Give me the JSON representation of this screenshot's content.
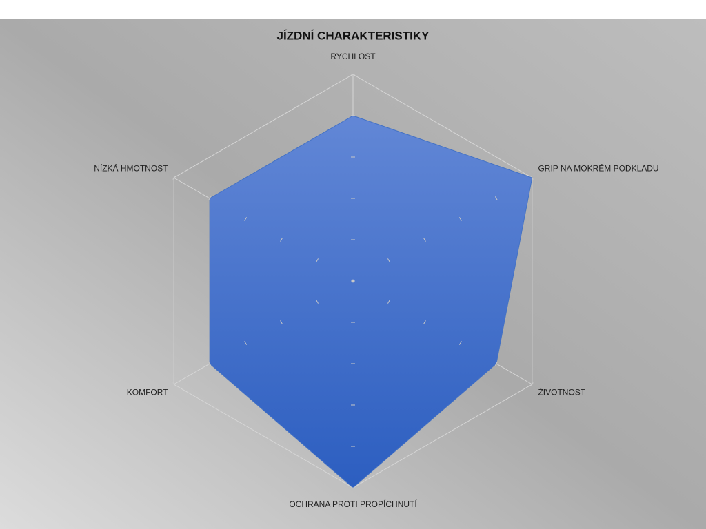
{
  "chart_data": {
    "type": "radar",
    "title": "JÍZDNÍ CHARAKTERISTIKY",
    "categories": [
      "RYCHLOST",
      "GRIP NA MOKRÉM PODKLADU",
      "ŽIVOTNOST",
      "OCHRANA PROTI PROPÍCHNUTÍ",
      "KOMFORT",
      "NÍZKÁ HMOTNOST"
    ],
    "values": [
      4,
      5,
      4,
      5,
      4,
      4
    ],
    "color": "#4472c4",
    "ylim": [
      0,
      5
    ],
    "yticks": [
      0,
      1,
      2,
      3,
      4,
      5
    ]
  }
}
